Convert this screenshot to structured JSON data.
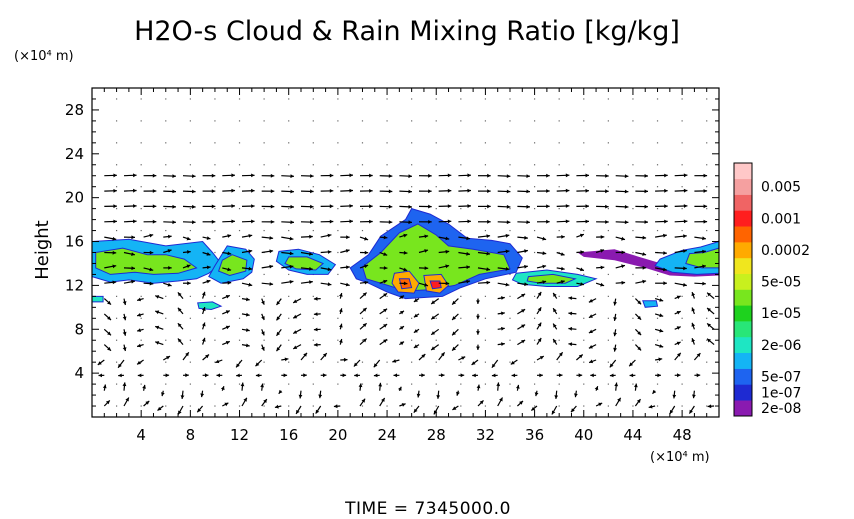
{
  "chart_data": {
    "type": "heatmap",
    "title": "H2O-s Cloud & Rain Mixing Ratio [kg/kg]",
    "y_unit": "(×10⁴ m)",
    "x_unit": "(×10⁴ m)",
    "ylabel": "Height",
    "xlabel": "",
    "footer": "TIME  =  7345000.0",
    "xlim": [
      0,
      51
    ],
    "ylim": [
      0,
      30
    ],
    "x_ticks": [
      4,
      8,
      12,
      16,
      20,
      24,
      28,
      32,
      36,
      40,
      44,
      48
    ],
    "y_ticks": [
      4,
      8,
      12,
      16,
      20,
      24,
      28
    ],
    "grid": "dotted",
    "legend_position": "right",
    "colorbar": [
      {
        "label": "2e-08",
        "color": "#8a1ab0"
      },
      {
        "label": "1e-07",
        "color": "#1e2ad2"
      },
      {
        "label": "5e-07",
        "color": "#1e64f0"
      },
      {
        "label": "",
        "color": "#14b4f5"
      },
      {
        "label": "2e-06",
        "color": "#1ee6c3"
      },
      {
        "label": "",
        "color": "#28e678"
      },
      {
        "label": "1e-05",
        "color": "#1ed21e"
      },
      {
        "label": "",
        "color": "#78e61e"
      },
      {
        "label": "5e-05",
        "color": "#c8f01e"
      },
      {
        "label": "",
        "color": "#f0e61e"
      },
      {
        "label": "0.0002",
        "color": "#ffaa00"
      },
      {
        "label": "",
        "color": "#ff6400"
      },
      {
        "label": "0.001",
        "color": "#ff1e1e"
      },
      {
        "label": "",
        "color": "#f06464"
      },
      {
        "label": "0.005",
        "color": "#f5a0a0"
      },
      {
        "label": "",
        "color": "#ffc8c8"
      }
    ],
    "cloud_regions": [
      {
        "level": 3,
        "points": [
          [
            0,
            16
          ],
          [
            3,
            16.2
          ],
          [
            6,
            15.6
          ],
          [
            9,
            16
          ],
          [
            9.8,
            15
          ],
          [
            10.5,
            14
          ],
          [
            9.5,
            13.1
          ],
          [
            8.5,
            12.6
          ],
          [
            7,
            12.4
          ],
          [
            5,
            12.2
          ],
          [
            3,
            12.5
          ],
          [
            1.5,
            12.3
          ],
          [
            0,
            12.8
          ]
        ]
      },
      {
        "level": 7,
        "points": [
          [
            0.3,
            15
          ],
          [
            2.5,
            15.4
          ],
          [
            4.5,
            14.8
          ],
          [
            6,
            14.8
          ],
          [
            7.5,
            14.4
          ],
          [
            8.5,
            13.6
          ],
          [
            7,
            13.1
          ],
          [
            5,
            13
          ],
          [
            3.5,
            13.2
          ],
          [
            1.5,
            13
          ],
          [
            0.3,
            13.6
          ]
        ]
      },
      {
        "level": 3,
        "points": [
          [
            11,
            15.6
          ],
          [
            12.5,
            15.3
          ],
          [
            13.2,
            14.4
          ],
          [
            13,
            13.2
          ],
          [
            12.3,
            12.6
          ],
          [
            10.5,
            12.2
          ],
          [
            9.5,
            12.8
          ],
          [
            10,
            13.8
          ]
        ]
      },
      {
        "level": 7,
        "points": [
          [
            11.4,
            14.8
          ],
          [
            12.6,
            14.3
          ],
          [
            12.5,
            13.3
          ],
          [
            11.2,
            12.9
          ],
          [
            10.3,
            13.3
          ],
          [
            10.6,
            14.3
          ]
        ]
      },
      {
        "level": 3,
        "points": [
          [
            15.2,
            15.1
          ],
          [
            16.8,
            15.3
          ],
          [
            18.5,
            14.8
          ],
          [
            19.8,
            13.9
          ],
          [
            19.2,
            13
          ],
          [
            17.5,
            13
          ],
          [
            16,
            13.4
          ],
          [
            15,
            14.2
          ]
        ]
      },
      {
        "level": 7,
        "points": [
          [
            16,
            14.6
          ],
          [
            17.5,
            14.6
          ],
          [
            18.8,
            14
          ],
          [
            18.2,
            13.4
          ],
          [
            16.6,
            13.5
          ],
          [
            15.7,
            14
          ]
        ]
      },
      {
        "level": 2,
        "points": [
          [
            21,
            13.6
          ],
          [
            22.5,
            14.8
          ],
          [
            23.5,
            16.5
          ],
          [
            25.5,
            18
          ],
          [
            26,
            19
          ],
          [
            27.5,
            18.5
          ],
          [
            29,
            17.6
          ],
          [
            30.5,
            16.3
          ],
          [
            32.5,
            16.1
          ],
          [
            34,
            15.8
          ],
          [
            35,
            14.5
          ],
          [
            34.5,
            13.2
          ],
          [
            32,
            12.6
          ],
          [
            30,
            11.8
          ],
          [
            28.5,
            11
          ],
          [
            25.5,
            10.8
          ],
          [
            24,
            11.4
          ],
          [
            22.5,
            12.2
          ],
          [
            21.5,
            12.6
          ]
        ]
      },
      {
        "level": 7,
        "points": [
          [
            22,
            13.7
          ],
          [
            23.5,
            15
          ],
          [
            25,
            16.8
          ],
          [
            26.5,
            17.6
          ],
          [
            28,
            16.6
          ],
          [
            29,
            15.6
          ],
          [
            31,
            15.3
          ],
          [
            33.5,
            14.8
          ],
          [
            34,
            13.5
          ],
          [
            31.5,
            13
          ],
          [
            29.5,
            12
          ],
          [
            27.5,
            11.6
          ],
          [
            25.5,
            11.5
          ],
          [
            23.5,
            12.2
          ],
          [
            22.3,
            12.6
          ]
        ]
      },
      {
        "level": 10,
        "points": [
          [
            24.6,
            13.1
          ],
          [
            25.8,
            13.3
          ],
          [
            26.6,
            12.2
          ],
          [
            26.2,
            11.3
          ],
          [
            24.9,
            11.4
          ],
          [
            24.4,
            12.2
          ]
        ]
      },
      {
        "level": 11,
        "points": [
          [
            25,
            12.6
          ],
          [
            25.8,
            12.6
          ],
          [
            26,
            11.8
          ],
          [
            25.2,
            11.7
          ]
        ]
      },
      {
        "level": 10,
        "points": [
          [
            27,
            12.9
          ],
          [
            28.4,
            13
          ],
          [
            29,
            12
          ],
          [
            28.3,
            11.3
          ],
          [
            27.2,
            11.5
          ]
        ]
      },
      {
        "level": 12,
        "points": [
          [
            27.5,
            12.4
          ],
          [
            28.3,
            12.4
          ],
          [
            28.4,
            11.8
          ],
          [
            27.7,
            11.7
          ]
        ]
      },
      {
        "level": 4,
        "points": [
          [
            34.5,
            13.1
          ],
          [
            37,
            13.4
          ],
          [
            39.5,
            13
          ],
          [
            41,
            12.6
          ],
          [
            39.5,
            11.9
          ],
          [
            37,
            11.9
          ],
          [
            35,
            12.1
          ],
          [
            34.2,
            12.5
          ]
        ]
      },
      {
        "level": 7,
        "points": [
          [
            35.5,
            12.8
          ],
          [
            37.5,
            13
          ],
          [
            39.3,
            12.6
          ],
          [
            38.5,
            12.2
          ],
          [
            36.5,
            12.2
          ],
          [
            35.4,
            12.4
          ]
        ]
      },
      {
        "level": 0,
        "points": [
          [
            39.5,
            15
          ],
          [
            42.5,
            15.3
          ],
          [
            44.5,
            14.6
          ],
          [
            46,
            14.1
          ],
          [
            48,
            14.7
          ],
          [
            51,
            16.1
          ],
          [
            51,
            12.9
          ],
          [
            49,
            12.8
          ],
          [
            47,
            12.9
          ],
          [
            45,
            13.6
          ],
          [
            42.5,
            14.3
          ],
          [
            40,
            14.6
          ]
        ]
      },
      {
        "level": 3,
        "points": [
          [
            46.2,
            14.4
          ],
          [
            48,
            15.2
          ],
          [
            49.5,
            15.5
          ],
          [
            51,
            16
          ],
          [
            51,
            13.1
          ],
          [
            49.2,
            13
          ],
          [
            47.2,
            13.2
          ],
          [
            45.8,
            13.8
          ]
        ]
      },
      {
        "level": 7,
        "points": [
          [
            48.6,
            14.9
          ],
          [
            49.8,
            15
          ],
          [
            51,
            15.4
          ],
          [
            51,
            13.6
          ],
          [
            49.6,
            13.6
          ],
          [
            48.3,
            14
          ]
        ]
      },
      {
        "level": 4,
        "points": [
          [
            8.6,
            10.4
          ],
          [
            9.8,
            10.5
          ],
          [
            10.5,
            10.1
          ],
          [
            9.7,
            9.8
          ],
          [
            8.7,
            9.9
          ]
        ]
      },
      {
        "level": 4,
        "points": [
          [
            0,
            11
          ],
          [
            0.9,
            11
          ],
          [
            0.9,
            10.5
          ],
          [
            0,
            10.5
          ]
        ]
      },
      {
        "level": 3,
        "points": [
          [
            44.8,
            10.6
          ],
          [
            45.9,
            10.6
          ],
          [
            46,
            10.1
          ],
          [
            45,
            10
          ]
        ]
      }
    ]
  }
}
